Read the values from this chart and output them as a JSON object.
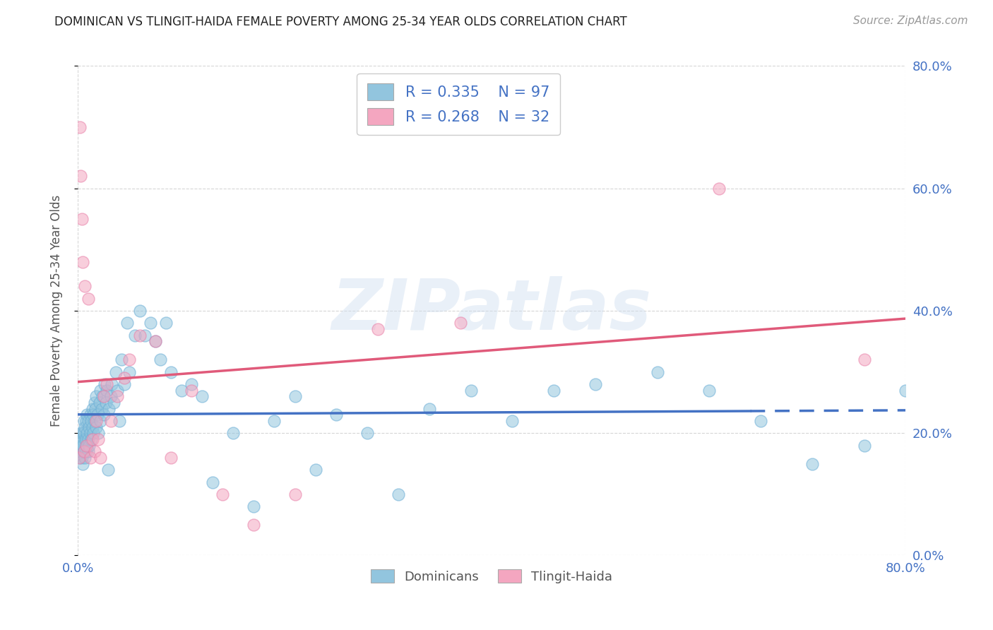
{
  "title": "DOMINICAN VS TLINGIT-HAIDA FEMALE POVERTY AMONG 25-34 YEAR OLDS CORRELATION CHART",
  "source": "Source: ZipAtlas.com",
  "ylabel": "Female Poverty Among 25-34 Year Olds",
  "dominican_color": "#92c5de",
  "dominican_edge_color": "#6baed6",
  "tlingit_color": "#f4a6c0",
  "tlingit_edge_color": "#e87fa8",
  "dominican_line_color": "#4472c4",
  "tlingit_line_color": "#e05a7a",
  "background_color": "#ffffff",
  "watermark": "ZIPatlas",
  "legend_r1": "R = 0.335",
  "legend_n1": "N = 97",
  "legend_r2": "R = 0.268",
  "legend_n2": "N = 32",
  "dominican_label": "Dominicans",
  "tlingit_label": "Tlingit-Haida",
  "dominican_x": [
    0.001,
    0.002,
    0.002,
    0.003,
    0.003,
    0.004,
    0.004,
    0.004,
    0.005,
    0.005,
    0.005,
    0.006,
    0.006,
    0.006,
    0.007,
    0.007,
    0.007,
    0.008,
    0.008,
    0.008,
    0.009,
    0.009,
    0.009,
    0.01,
    0.01,
    0.01,
    0.011,
    0.011,
    0.012,
    0.012,
    0.013,
    0.013,
    0.014,
    0.014,
    0.015,
    0.015,
    0.016,
    0.016,
    0.017,
    0.018,
    0.018,
    0.019,
    0.02,
    0.021,
    0.022,
    0.022,
    0.023,
    0.024,
    0.025,
    0.026,
    0.027,
    0.028,
    0.029,
    0.03,
    0.032,
    0.033,
    0.035,
    0.037,
    0.038,
    0.04,
    0.042,
    0.045,
    0.048,
    0.05,
    0.055,
    0.06,
    0.065,
    0.07,
    0.075,
    0.08,
    0.085,
    0.09,
    0.1,
    0.11,
    0.12,
    0.13,
    0.15,
    0.17,
    0.19,
    0.21,
    0.23,
    0.25,
    0.28,
    0.31,
    0.34,
    0.38,
    0.42,
    0.46,
    0.5,
    0.56,
    0.61,
    0.66,
    0.71,
    0.76,
    0.8,
    0.81,
    0.82
  ],
  "dominican_y": [
    0.17,
    0.19,
    0.16,
    0.18,
    0.2,
    0.17,
    0.19,
    0.16,
    0.18,
    0.2,
    0.15,
    0.17,
    0.2,
    0.22,
    0.16,
    0.19,
    0.21,
    0.17,
    0.19,
    0.22,
    0.18,
    0.2,
    0.23,
    0.17,
    0.19,
    0.22,
    0.18,
    0.21,
    0.2,
    0.23,
    0.19,
    0.22,
    0.21,
    0.24,
    0.2,
    0.23,
    0.22,
    0.25,
    0.24,
    0.21,
    0.26,
    0.23,
    0.2,
    0.25,
    0.22,
    0.27,
    0.24,
    0.26,
    0.23,
    0.28,
    0.25,
    0.27,
    0.14,
    0.24,
    0.26,
    0.28,
    0.25,
    0.3,
    0.27,
    0.22,
    0.32,
    0.28,
    0.38,
    0.3,
    0.36,
    0.4,
    0.36,
    0.38,
    0.35,
    0.32,
    0.38,
    0.3,
    0.27,
    0.28,
    0.26,
    0.12,
    0.2,
    0.08,
    0.22,
    0.26,
    0.14,
    0.23,
    0.2,
    0.1,
    0.24,
    0.27,
    0.22,
    0.27,
    0.28,
    0.3,
    0.27,
    0.22,
    0.15,
    0.18,
    0.27,
    0.25,
    0.22
  ],
  "tlingit_x": [
    0.001,
    0.002,
    0.003,
    0.004,
    0.005,
    0.006,
    0.007,
    0.008,
    0.01,
    0.012,
    0.014,
    0.016,
    0.018,
    0.02,
    0.022,
    0.025,
    0.028,
    0.032,
    0.038,
    0.045,
    0.05,
    0.06,
    0.075,
    0.09,
    0.11,
    0.14,
    0.17,
    0.21,
    0.29,
    0.37,
    0.62,
    0.76
  ],
  "tlingit_y": [
    0.16,
    0.7,
    0.62,
    0.55,
    0.48,
    0.17,
    0.44,
    0.18,
    0.42,
    0.16,
    0.19,
    0.17,
    0.22,
    0.19,
    0.16,
    0.26,
    0.28,
    0.22,
    0.26,
    0.29,
    0.32,
    0.36,
    0.35,
    0.16,
    0.27,
    0.1,
    0.05,
    0.1,
    0.37,
    0.38,
    0.6,
    0.32
  ],
  "xlim": [
    0.0,
    0.8
  ],
  "ylim": [
    0.0,
    0.8
  ],
  "xticks": [
    0.0,
    0.8
  ],
  "yticks": [
    0.0,
    0.2,
    0.4,
    0.6,
    0.8
  ],
  "xticklabels": [
    "0.0%",
    "80.0%"
  ],
  "yticklabels": [
    "0.0%",
    "20.0%",
    "40.0%",
    "60.0%",
    "80.0%"
  ],
  "grid_color": "#cccccc",
  "tick_color": "#4472c4",
  "ylabel_color": "#555555",
  "dot_size": 150,
  "dot_alpha": 0.55,
  "line_width": 2.5,
  "dom_line_solid_end": 0.65,
  "dom_line_dash_start": 0.65
}
